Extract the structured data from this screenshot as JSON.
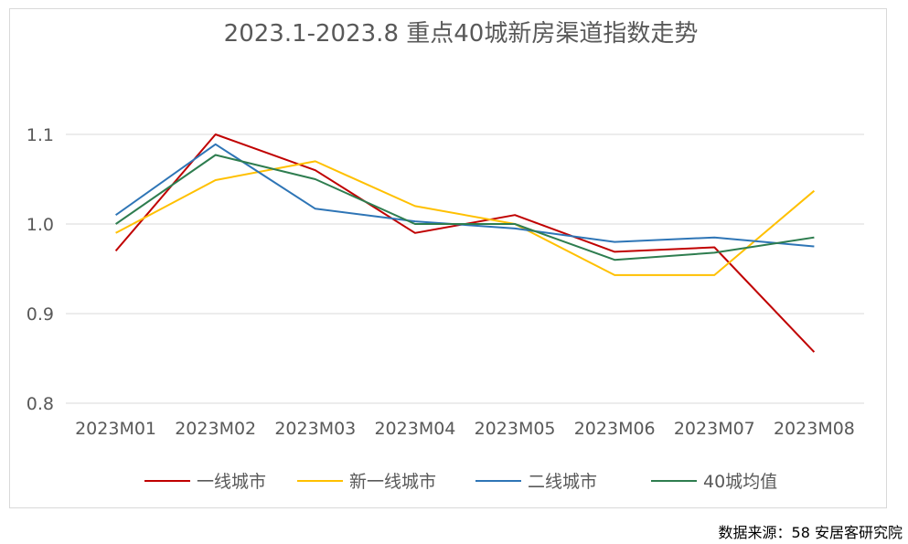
{
  "chart_data": {
    "type": "line",
    "title": "2023.1-2023.8 重点40城新房渠道指数走势",
    "xlabel": "",
    "ylabel": "",
    "categories": [
      "2023M01",
      "2023M02",
      "2023M03",
      "2023M04",
      "2023M05",
      "2023M06",
      "2023M07",
      "2023M08"
    ],
    "ylim": [
      0.8,
      1.1
    ],
    "yticks": [
      "0.8",
      "0.9",
      "1.0",
      "1.1"
    ],
    "grid": true,
    "legend_position": "bottom",
    "series": [
      {
        "name": "一线城市",
        "color": "#c00000",
        "values": [
          0.97,
          1.1,
          1.06,
          0.99,
          1.01,
          0.969,
          0.974,
          0.857
        ]
      },
      {
        "name": "新一线城市",
        "color": "#ffc000",
        "values": [
          0.99,
          1.049,
          1.07,
          1.02,
          1.0,
          0.943,
          0.943,
          1.037
        ]
      },
      {
        "name": "二线城市",
        "color": "#2e75b6",
        "values": [
          1.01,
          1.089,
          1.017,
          1.003,
          0.995,
          0.98,
          0.985,
          0.975
        ]
      },
      {
        "name": "40城均值",
        "color": "#2e7d4f",
        "values": [
          1.0,
          1.077,
          1.05,
          1.0,
          1.0,
          0.96,
          0.968,
          0.985
        ]
      }
    ]
  },
  "source_note": "数据来源：58 安居客研究院"
}
